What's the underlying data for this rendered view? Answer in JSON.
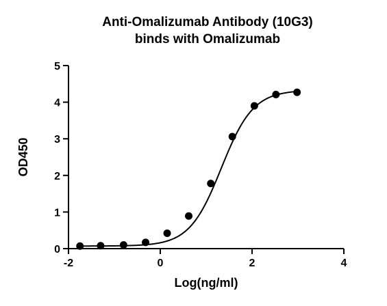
{
  "chart_data": {
    "type": "scatter",
    "title_lines": [
      "Anti-Omalizumab Antibody (10G3)",
      "binds with Omalizumab"
    ],
    "xlabel": "Log(ng/ml)",
    "ylabel": "OD450",
    "xlim": [
      -2,
      4
    ],
    "ylim": [
      0,
      5
    ],
    "xticks": [
      -2,
      0,
      2,
      4
    ],
    "yticks": [
      0,
      1,
      2,
      3,
      4,
      5
    ],
    "grid": false,
    "point_color": "#000000",
    "curve_color": "#000000",
    "series": [
      {
        "x": [
          -1.75,
          -1.3,
          -0.8,
          -0.32,
          0.15,
          0.62,
          1.1,
          1.57,
          2.05,
          2.52,
          2.98
        ],
        "y": [
          0.07,
          0.08,
          0.1,
          0.17,
          0.42,
          0.89,
          1.78,
          3.06,
          3.9,
          4.21,
          4.27
        ]
      }
    ],
    "fit": {
      "model": "4PL",
      "bottom": 0.07,
      "top": 4.33,
      "log_ec50": 1.33,
      "hill": 1.25
    }
  }
}
